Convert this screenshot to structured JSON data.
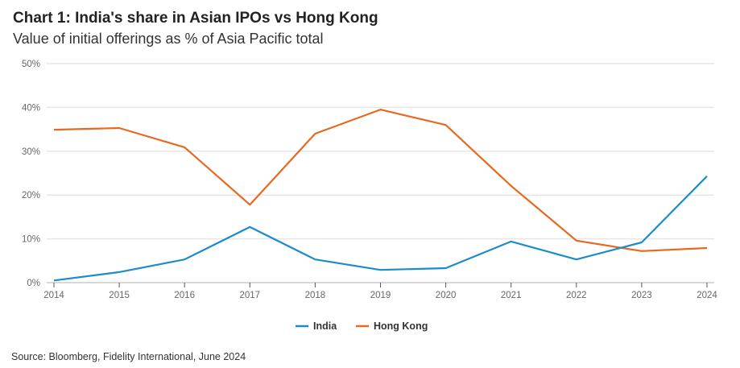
{
  "chart_data": {
    "type": "line",
    "title": "Chart 1: India's share in Asian IPOs vs Hong Kong",
    "subtitle": "Value of initial offerings as % of Asia Pacific total",
    "xlabel": "",
    "ylabel": "",
    "x": [
      "2014",
      "2015",
      "2016",
      "2017",
      "2018",
      "2019",
      "2020",
      "2021",
      "2022",
      "2023",
      "2024"
    ],
    "ylim": [
      0,
      50
    ],
    "yticks": [
      0,
      10,
      20,
      30,
      40,
      50
    ],
    "ytick_labels": [
      "0%",
      "10%",
      "20%",
      "30%",
      "40%",
      "50%"
    ],
    "grid": true,
    "legend_position": "bottom-center",
    "series": [
      {
        "name": "India",
        "color": "#1a8ccc",
        "values": [
          0.5,
          2.4,
          5.3,
          12.7,
          5.3,
          2.9,
          3.3,
          9.4,
          5.3,
          9.2,
          24.3
        ]
      },
      {
        "name": "Hong Kong",
        "color": "#e8681f",
        "values": [
          34.9,
          35.3,
          30.9,
          17.8,
          34.0,
          39.5,
          36.0,
          22.1,
          9.6,
          7.2,
          7.9
        ]
      }
    ],
    "source": "Source: Bloomberg, Fidelity International, June 2024"
  }
}
